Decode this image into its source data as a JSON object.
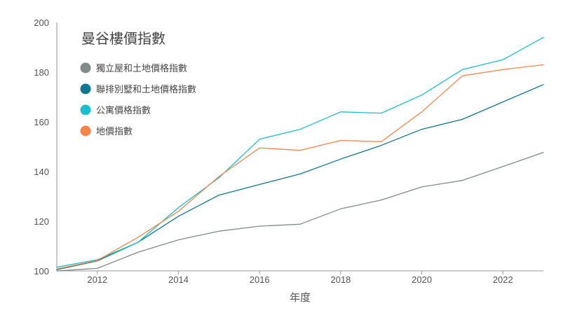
{
  "chart_data": {
    "type": "line",
    "title": "曼谷樓價指數",
    "xlabel": "年度",
    "ylabel": "",
    "xlim": [
      2011,
      2023
    ],
    "ylim": [
      100,
      200
    ],
    "x_ticks": [
      "2012",
      "2014",
      "2016",
      "2018",
      "2020",
      "2022"
    ],
    "y_ticks": [
      "100",
      "120",
      "140",
      "160",
      "180",
      "200"
    ],
    "grid": false,
    "legend_position": "top-left",
    "x": [
      2011,
      2012,
      2013,
      2014,
      2015,
      2016,
      2017,
      2018,
      2019,
      2020,
      2021,
      2022,
      2023
    ],
    "series": [
      {
        "name": "獨立屋和土地價格指數",
        "color": "#7f8c8a",
        "values": [
          100.0,
          101.0,
          107.5,
          112.5,
          116.0,
          118.0,
          118.8,
          125.0,
          128.5,
          133.8,
          136.4,
          142.0,
          147.7
        ]
      },
      {
        "name": "聯排別墅和土地價格指數",
        "color": "#0f7891",
        "values": [
          100.5,
          104.0,
          111.5,
          122.0,
          130.5,
          134.8,
          139.0,
          145.0,
          150.5,
          157.0,
          161.0,
          168.0,
          175.0
        ]
      },
      {
        "name": "公寓價格指數",
        "color": "#19bfcf",
        "values": [
          101.5,
          104.5,
          111.5,
          125.5,
          137.5,
          153.0,
          157.0,
          164.0,
          163.5,
          170.8,
          181.0,
          185.0,
          194.0
        ]
      },
      {
        "name": "地價指數",
        "color": "#f8844a",
        "values": [
          100.8,
          104.2,
          113.5,
          124.0,
          138.0,
          149.5,
          148.5,
          152.5,
          152.0,
          164.0,
          178.5,
          181.0,
          183.0
        ]
      }
    ]
  }
}
